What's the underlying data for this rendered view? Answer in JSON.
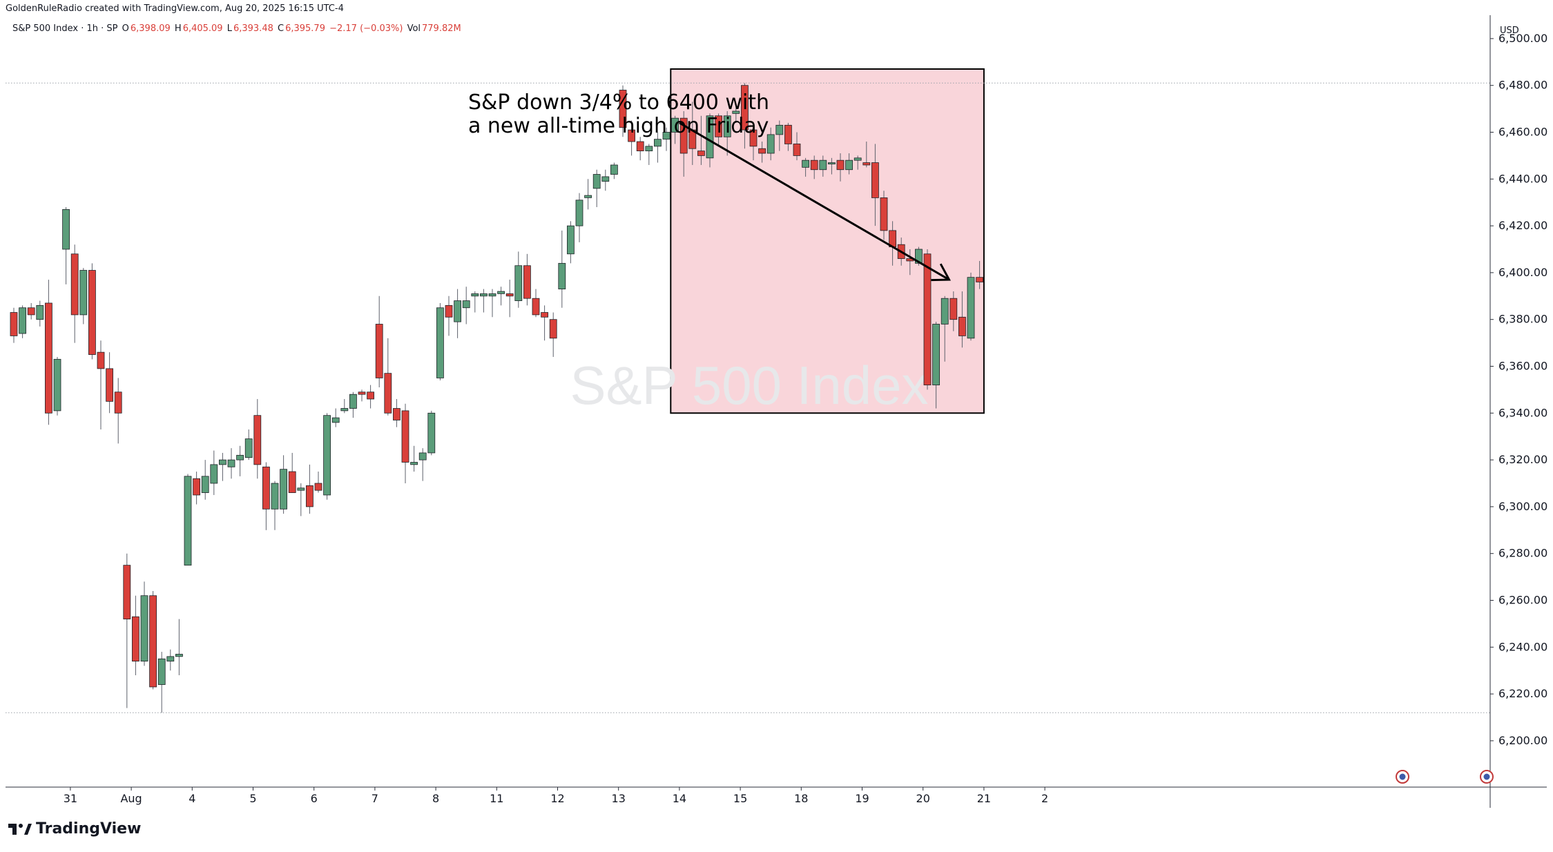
{
  "header": {
    "attribution": "GoldenRuleRadio created with TradingView.com, Aug 20, 2025 16:15 UTC-4"
  },
  "legend": {
    "symbol": "S&P 500 Index · 1h · SP",
    "open_label": "O",
    "open": "6,398.09",
    "high_label": "H",
    "high": "6,405.09",
    "low_label": "L",
    "low": "6,393.48",
    "close_label": "C",
    "close": "6,395.79",
    "change": "−2.17 (−0.03%)",
    "vol_label": "Vol",
    "vol": "779.82M"
  },
  "watermark": "S&P 500 Index",
  "currency": "USD",
  "brand": "TradingView",
  "annotation": {
    "line1": "S&P down 3/4% to 6400 with",
    "line2": "a new all-time high on Friday"
  },
  "colors": {
    "up": "#5b9d7a",
    "down": "#d9403a",
    "highlight_fill": "#f9d5da",
    "grid": "#9aa0a8",
    "text": "#131722"
  },
  "chart_data": {
    "type": "candlestick",
    "title": "S&P 500 Index · 1h · SP",
    "ylabel": "USD",
    "ylim": [
      6185,
      6510
    ],
    "y_ticks": [
      "6,200.00",
      "6,220.00",
      "6,240.00",
      "6,260.00",
      "6,280.00",
      "6,300.00",
      "6,320.00",
      "6,340.00",
      "6,360.00",
      "6,380.00",
      "6,400.00",
      "6,420.00",
      "6,440.00",
      "6,460.00",
      "6,480.00",
      "6,500.00"
    ],
    "y_tick_values": [
      6200,
      6220,
      6240,
      6260,
      6280,
      6300,
      6320,
      6340,
      6360,
      6380,
      6400,
      6420,
      6440,
      6460,
      6480,
      6500
    ],
    "x_tick_labels": [
      {
        "label": "31",
        "bar": 6.5
      },
      {
        "label": "Aug",
        "bar": 13.5
      },
      {
        "label": "4",
        "bar": 20.5
      },
      {
        "label": "5",
        "bar": 27.5
      },
      {
        "label": "6",
        "bar": 34.5
      },
      {
        "label": "7",
        "bar": 41.5
      },
      {
        "label": "8",
        "bar": 48.5
      },
      {
        "label": "11",
        "bar": 55.5
      },
      {
        "label": "12",
        "bar": 62.5
      },
      {
        "label": "13",
        "bar": 69.5
      },
      {
        "label": "14",
        "bar": 76.5
      },
      {
        "label": "15",
        "bar": 83.5
      },
      {
        "label": "18",
        "bar": 90.5
      },
      {
        "label": "19",
        "bar": 97.5
      },
      {
        "label": "20",
        "bar": 104.5
      },
      {
        "label": "21",
        "bar": 111.5
      },
      {
        "label": "2",
        "bar": 118.5
      }
    ],
    "reference_lines": [
      6481,
      6212
    ],
    "highlight_box": {
      "bar_from": 75.5,
      "bar_to": 111.5,
      "y_from": 6340,
      "y_to": 6487
    },
    "trend_arrow": {
      "from": {
        "bar": 76.5,
        "y": 6464
      },
      "to": {
        "bar": 107.5,
        "y": 6397
      }
    },
    "ohlc": [
      [
        6383,
        6385,
        6370,
        6373
      ],
      [
        6374,
        6386,
        6372,
        6385
      ],
      [
        6385,
        6387,
        6380,
        6382
      ],
      [
        6380,
        6388,
        6377,
        6386
      ],
      [
        6387,
        6397,
        6335,
        6340
      ],
      [
        6341,
        6364,
        6339,
        6363
      ],
      [
        6410,
        6428,
        6395,
        6427
      ],
      [
        6408,
        6412,
        6370,
        6382
      ],
      [
        6382,
        6402,
        6378,
        6401
      ],
      [
        6401,
        6404,
        6363,
        6365
      ],
      [
        6366,
        6371,
        6333,
        6359
      ],
      [
        6359,
        6366,
        6340,
        6345
      ],
      [
        6349,
        6355,
        6327,
        6340
      ],
      [
        6275,
        6280,
        6214,
        6252
      ],
      [
        6253,
        6262,
        6228,
        6234
      ],
      [
        6234,
        6268,
        6232,
        6262
      ],
      [
        6262,
        6264,
        6222,
        6223
      ],
      [
        6224,
        6238,
        6212,
        6235
      ],
      [
        6234,
        6239,
        6230,
        6236
      ],
      [
        6236,
        6252,
        6228,
        6237
      ],
      [
        6275,
        6314,
        6275,
        6313
      ],
      [
        6312,
        6315,
        6301,
        6305
      ],
      [
        6306,
        6320,
        6303,
        6313
      ],
      [
        6310,
        6324,
        6305,
        6318
      ],
      [
        6318,
        6323,
        6311,
        6320
      ],
      [
        6317,
        6325,
        6312,
        6320
      ],
      [
        6320,
        6326,
        6313,
        6322
      ],
      [
        6321,
        6333,
        6320,
        6329
      ],
      [
        6339,
        6346,
        6312,
        6318
      ],
      [
        6317,
        6319,
        6290,
        6299
      ],
      [
        6299,
        6311,
        6290,
        6310
      ],
      [
        6299,
        6322,
        6297,
        6316
      ],
      [
        6315,
        6323,
        6306,
        6306
      ],
      [
        6307,
        6310,
        6296,
        6308
      ],
      [
        6309,
        6318,
        6297,
        6300
      ],
      [
        6310,
        6315,
        6306,
        6307
      ],
      [
        6305,
        6340,
        6303,
        6339
      ],
      [
        6336,
        6342,
        6334,
        6338
      ],
      [
        6341,
        6346,
        6340,
        6342
      ],
      [
        6342,
        6349,
        6338,
        6348
      ],
      [
        6349,
        6350,
        6345,
        6348
      ],
      [
        6349,
        6352,
        6342,
        6346
      ],
      [
        6378,
        6390,
        6351,
        6355
      ],
      [
        6357,
        6372,
        6339,
        6340
      ],
      [
        6342,
        6346,
        6334,
        6337
      ],
      [
        6341,
        6344,
        6310,
        6319
      ],
      [
        6318,
        6326,
        6315,
        6319
      ],
      [
        6320,
        6325,
        6311,
        6323
      ],
      [
        6323,
        6341,
        6322,
        6340
      ],
      [
        6355,
        6387,
        6354,
        6385
      ],
      [
        6386,
        6390,
        6373,
        6381
      ],
      [
        6379,
        6393,
        6372,
        6388
      ],
      [
        6385,
        6394,
        6378,
        6388
      ],
      [
        6390,
        6392,
        6383,
        6391
      ],
      [
        6390,
        6393,
        6383,
        6391
      ],
      [
        6390,
        6393,
        6381,
        6391
      ],
      [
        6391,
        6394,
        6386,
        6392
      ],
      [
        6391,
        6397,
        6381,
        6390
      ],
      [
        6388,
        6409,
        6385,
        6403
      ],
      [
        6403,
        6408,
        6386,
        6389
      ],
      [
        6389,
        6393,
        6381,
        6382
      ],
      [
        6383,
        6386,
        6371,
        6381
      ],
      [
        6380,
        6383,
        6364,
        6372
      ],
      [
        6393,
        6418,
        6385,
        6404
      ],
      [
        6408,
        6422,
        6404,
        6420
      ],
      [
        6420,
        6434,
        6413,
        6431
      ],
      [
        6432,
        6440,
        6427,
        6433
      ],
      [
        6436,
        6444,
        6428,
        6442
      ],
      [
        6439,
        6444,
        6435,
        6441
      ],
      [
        6442,
        6447,
        6440,
        6446
      ],
      [
        6478,
        6480,
        6458,
        6462
      ],
      [
        6461,
        6465,
        6450,
        6456
      ],
      [
        6456,
        6458,
        6448,
        6452
      ],
      [
        6452,
        6455,
        6446,
        6454
      ],
      [
        6454,
        6460,
        6447,
        6457
      ],
      [
        6457,
        6462,
        6452,
        6460
      ],
      [
        6460,
        6467,
        6455,
        6466
      ],
      [
        6466,
        6469,
        6441,
        6451
      ],
      [
        6461,
        6473,
        6446,
        6453
      ],
      [
        6452,
        6467,
        6446,
        6450
      ],
      [
        6449,
        6468,
        6445,
        6467
      ],
      [
        6467,
        6468,
        6454,
        6458
      ],
      [
        6458,
        6469,
        6450,
        6467
      ],
      [
        6468,
        6472,
        6464,
        6469
      ],
      [
        6480,
        6481,
        6453,
        6461
      ],
      [
        6461,
        6464,
        6448,
        6454
      ],
      [
        6453,
        6456,
        6447,
        6451
      ],
      [
        6451,
        6462,
        6448,
        6459
      ],
      [
        6459,
        6465,
        6452,
        6463
      ],
      [
        6463,
        6464,
        6452,
        6455
      ],
      [
        6455,
        6460,
        6448,
        6450
      ],
      [
        6445,
        6449,
        6441,
        6448
      ],
      [
        6448,
        6450,
        6440,
        6444
      ],
      [
        6444,
        6450,
        6441,
        6448
      ],
      [
        6447,
        6449,
        6442,
        6447
      ],
      [
        6448,
        6451,
        6439,
        6444
      ],
      [
        6444,
        6451,
        6442,
        6448
      ],
      [
        6448,
        6450,
        6444,
        6449
      ],
      [
        6447,
        6456,
        6445,
        6446
      ],
      [
        6447,
        6455,
        6420,
        6432
      ],
      [
        6432,
        6435,
        6414,
        6418
      ],
      [
        6418,
        6422,
        6403,
        6411
      ],
      [
        6412,
        6415,
        6403,
        6406
      ],
      [
        6406,
        6410,
        6399,
        6405
      ],
      [
        6404,
        6411,
        6403,
        6410
      ],
      [
        6408,
        6410,
        6350,
        6352
      ],
      [
        6352,
        6379,
        6342,
        6378
      ],
      [
        6378,
        6390,
        6362,
        6389
      ],
      [
        6389,
        6392,
        6375,
        6380
      ],
      [
        6381,
        6392,
        6368,
        6373
      ],
      [
        6372,
        6400,
        6371,
        6398
      ],
      [
        6398,
        6405,
        6393,
        6396
      ]
    ]
  }
}
